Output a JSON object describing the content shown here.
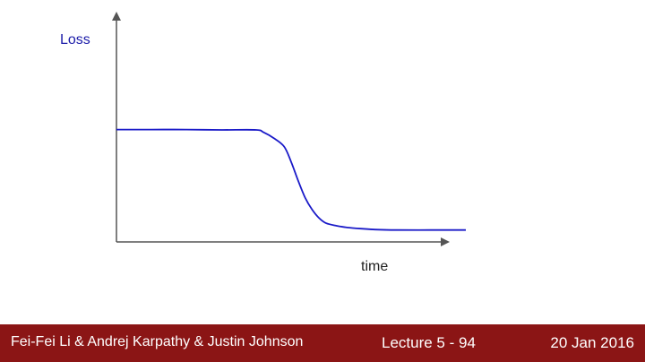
{
  "slide": {
    "footer_authors": "Fei-Fei Li & Andrej Karpathy & Justin Johnson",
    "footer_lecture": "Lecture 5 - 94",
    "footer_date": "20 Jan 2016",
    "footer_bg": "#8b1515"
  },
  "chart_data": {
    "type": "line",
    "title": "",
    "xlabel": "time",
    "ylabel": "Loss",
    "xlim": [
      0,
      10
    ],
    "ylim": [
      0,
      10
    ],
    "grid": false,
    "axis_color": "#555555",
    "label_color": "#1a1aa8",
    "series": [
      {
        "color": "#1a1ac8",
        "x": [
          0,
          1,
          2,
          3,
          4,
          4.2,
          4.5,
          4.8,
          5.0,
          5.2,
          5.4,
          5.6,
          5.8,
          6.0,
          6.3,
          6.6,
          7.0,
          7.5,
          8.0,
          9.0,
          10.0
        ],
        "y": [
          6.6,
          6.6,
          6.6,
          6.58,
          6.58,
          6.45,
          6.1,
          5.6,
          4.7,
          3.6,
          2.6,
          1.9,
          1.4,
          1.1,
          0.95,
          0.85,
          0.78,
          0.72,
          0.7,
          0.7,
          0.7
        ]
      }
    ]
  }
}
